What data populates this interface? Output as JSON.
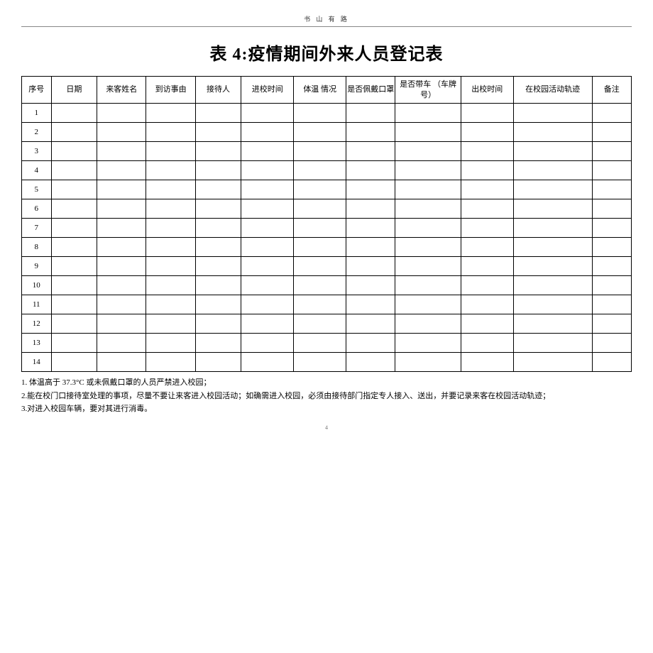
{
  "header": {
    "motto": "书 山 有 路"
  },
  "title": "表 4:疫情期间外来人员登记表",
  "table": {
    "columns": [
      "序号",
      "日期",
      "来客姓名",
      "到访事由",
      "接待人",
      "进校时间",
      "体温 情况",
      "是否佩戴口罩",
      "是否带车 （车牌号）",
      "出校时间",
      "在校园活动轨迹",
      "备注"
    ],
    "row_numbers": [
      "1",
      "2",
      "3",
      "4",
      "5",
      "6",
      "7",
      "8",
      "9",
      "10",
      "11",
      "12",
      "13",
      "14"
    ]
  },
  "notes": {
    "n1": "1. 体温高于 37.3°C 或未佩戴口罩的人员严禁进入校园；",
    "n2": "2.能在校门口接待室处理的事项，尽量不要让来客进入校园活动；如确需进入校园，必须由接待部门指定专人接入、送出，并要记录来客在校园活动轨迹；",
    "n3": "3.对进入校园车辆，要对其进行消毒。"
  },
  "page_number": "4"
}
